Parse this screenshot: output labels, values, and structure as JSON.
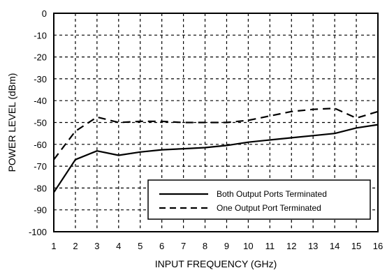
{
  "chart_data": {
    "type": "line",
    "title": "",
    "xlabel": "INPUT FREQUENCY (GHz)",
    "ylabel": "POWER LEVEL (dBm)",
    "xlim": [
      1,
      16
    ],
    "ylim": [
      -100,
      0
    ],
    "x_ticks": [
      1,
      2,
      3,
      4,
      5,
      6,
      7,
      8,
      9,
      10,
      11,
      12,
      13,
      14,
      15,
      16
    ],
    "y_ticks": [
      0,
      -10,
      -20,
      -30,
      -40,
      -50,
      -60,
      -70,
      -80,
      -90,
      -100
    ],
    "grid": true,
    "grid_style": "dashed",
    "legend_position": "bottom-right",
    "series": [
      {
        "name": "Both Output Ports Terminated",
        "line_style": "solid",
        "color": "#000000",
        "x": [
          1,
          2,
          3,
          4,
          5,
          6,
          7,
          8,
          9,
          10,
          11,
          12,
          13,
          14,
          15,
          16
        ],
        "y": [
          -82,
          -67,
          -63,
          -65,
          -63.5,
          -62.5,
          -62,
          -61.5,
          -60.5,
          -59,
          -58,
          -57,
          -56,
          -55,
          -52.5,
          -51
        ]
      },
      {
        "name": "One Output Port Terminated",
        "line_style": "dashed",
        "color": "#000000",
        "x": [
          1,
          2,
          3,
          4,
          5,
          6,
          7,
          8,
          9,
          10,
          11,
          12,
          13,
          14,
          15,
          16
        ],
        "y": [
          -67,
          -54,
          -47.5,
          -50,
          -49.5,
          -49.5,
          -50,
          -50,
          -50,
          -49,
          -47,
          -45,
          -44,
          -43.5,
          -48,
          -45
        ]
      }
    ]
  }
}
